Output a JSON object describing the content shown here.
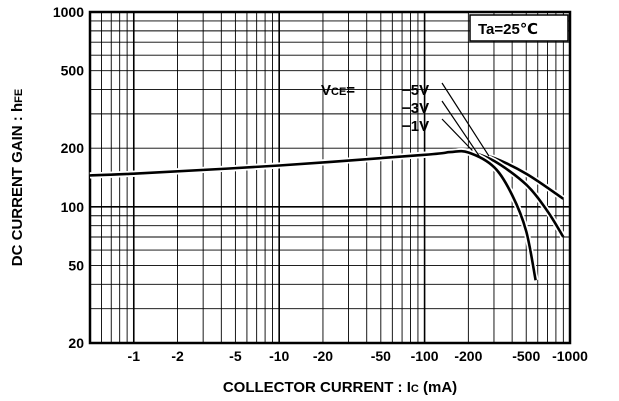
{
  "chart_data": {
    "type": "line",
    "title": "",
    "xlabel_parts": {
      "main": "COLLECTOR  CURRENT : I",
      "sub": "C",
      "unit": " (mA)"
    },
    "ylabel_parts": {
      "main": "DC CURRENT GAIN : h",
      "sub": "FE"
    },
    "x_scale": "log",
    "y_scale": "log",
    "xlim": [
      -0.5,
      -1000
    ],
    "ylim": [
      20,
      1000
    ],
    "grid": true,
    "x_ticks": [
      {
        "value": -1,
        "label": "-1"
      },
      {
        "value": -2,
        "label": "-2"
      },
      {
        "value": -5,
        "label": "-5"
      },
      {
        "value": -10,
        "label": "-10"
      },
      {
        "value": -20,
        "label": "-20"
      },
      {
        "value": -50,
        "label": "-50"
      },
      {
        "value": -100,
        "label": "-100"
      },
      {
        "value": -200,
        "label": "-200"
      },
      {
        "value": -500,
        "label": "-500"
      },
      {
        "value": -1000,
        "label": "-1000"
      }
    ],
    "y_ticks": [
      {
        "value": 20,
        "label": "20"
      },
      {
        "value": 50,
        "label": "50"
      },
      {
        "value": 100,
        "label": "100"
      },
      {
        "value": 200,
        "label": "200"
      },
      {
        "value": 500,
        "label": "500"
      },
      {
        "value": 1000,
        "label": "1000"
      }
    ],
    "annotation": "Ta=25℃",
    "vce_prefix": {
      "main": "V",
      "sub": "CE",
      "eq": "="
    },
    "series": [
      {
        "name": "−5V",
        "x": [
          -0.5,
          -1,
          -10,
          -100,
          -150,
          -200,
          -300,
          -500,
          -900
        ],
        "y": [
          145,
          148,
          163,
          185,
          190,
          192,
          178,
          148,
          110
        ]
      },
      {
        "name": "−3V",
        "x": [
          -0.5,
          -1,
          -10,
          -100,
          -150,
          -200,
          -300,
          -500,
          -700,
          -900
        ],
        "y": [
          145,
          148,
          163,
          185,
          191,
          192,
          172,
          130,
          95,
          70
        ]
      },
      {
        "name": "−1V",
        "x": [
          -0.5,
          -1,
          -10,
          -100,
          -150,
          -200,
          -300,
          -400,
          -500,
          -580
        ],
        "y": [
          145,
          148,
          163,
          185,
          191,
          190,
          160,
          115,
          75,
          42
        ]
      }
    ]
  }
}
